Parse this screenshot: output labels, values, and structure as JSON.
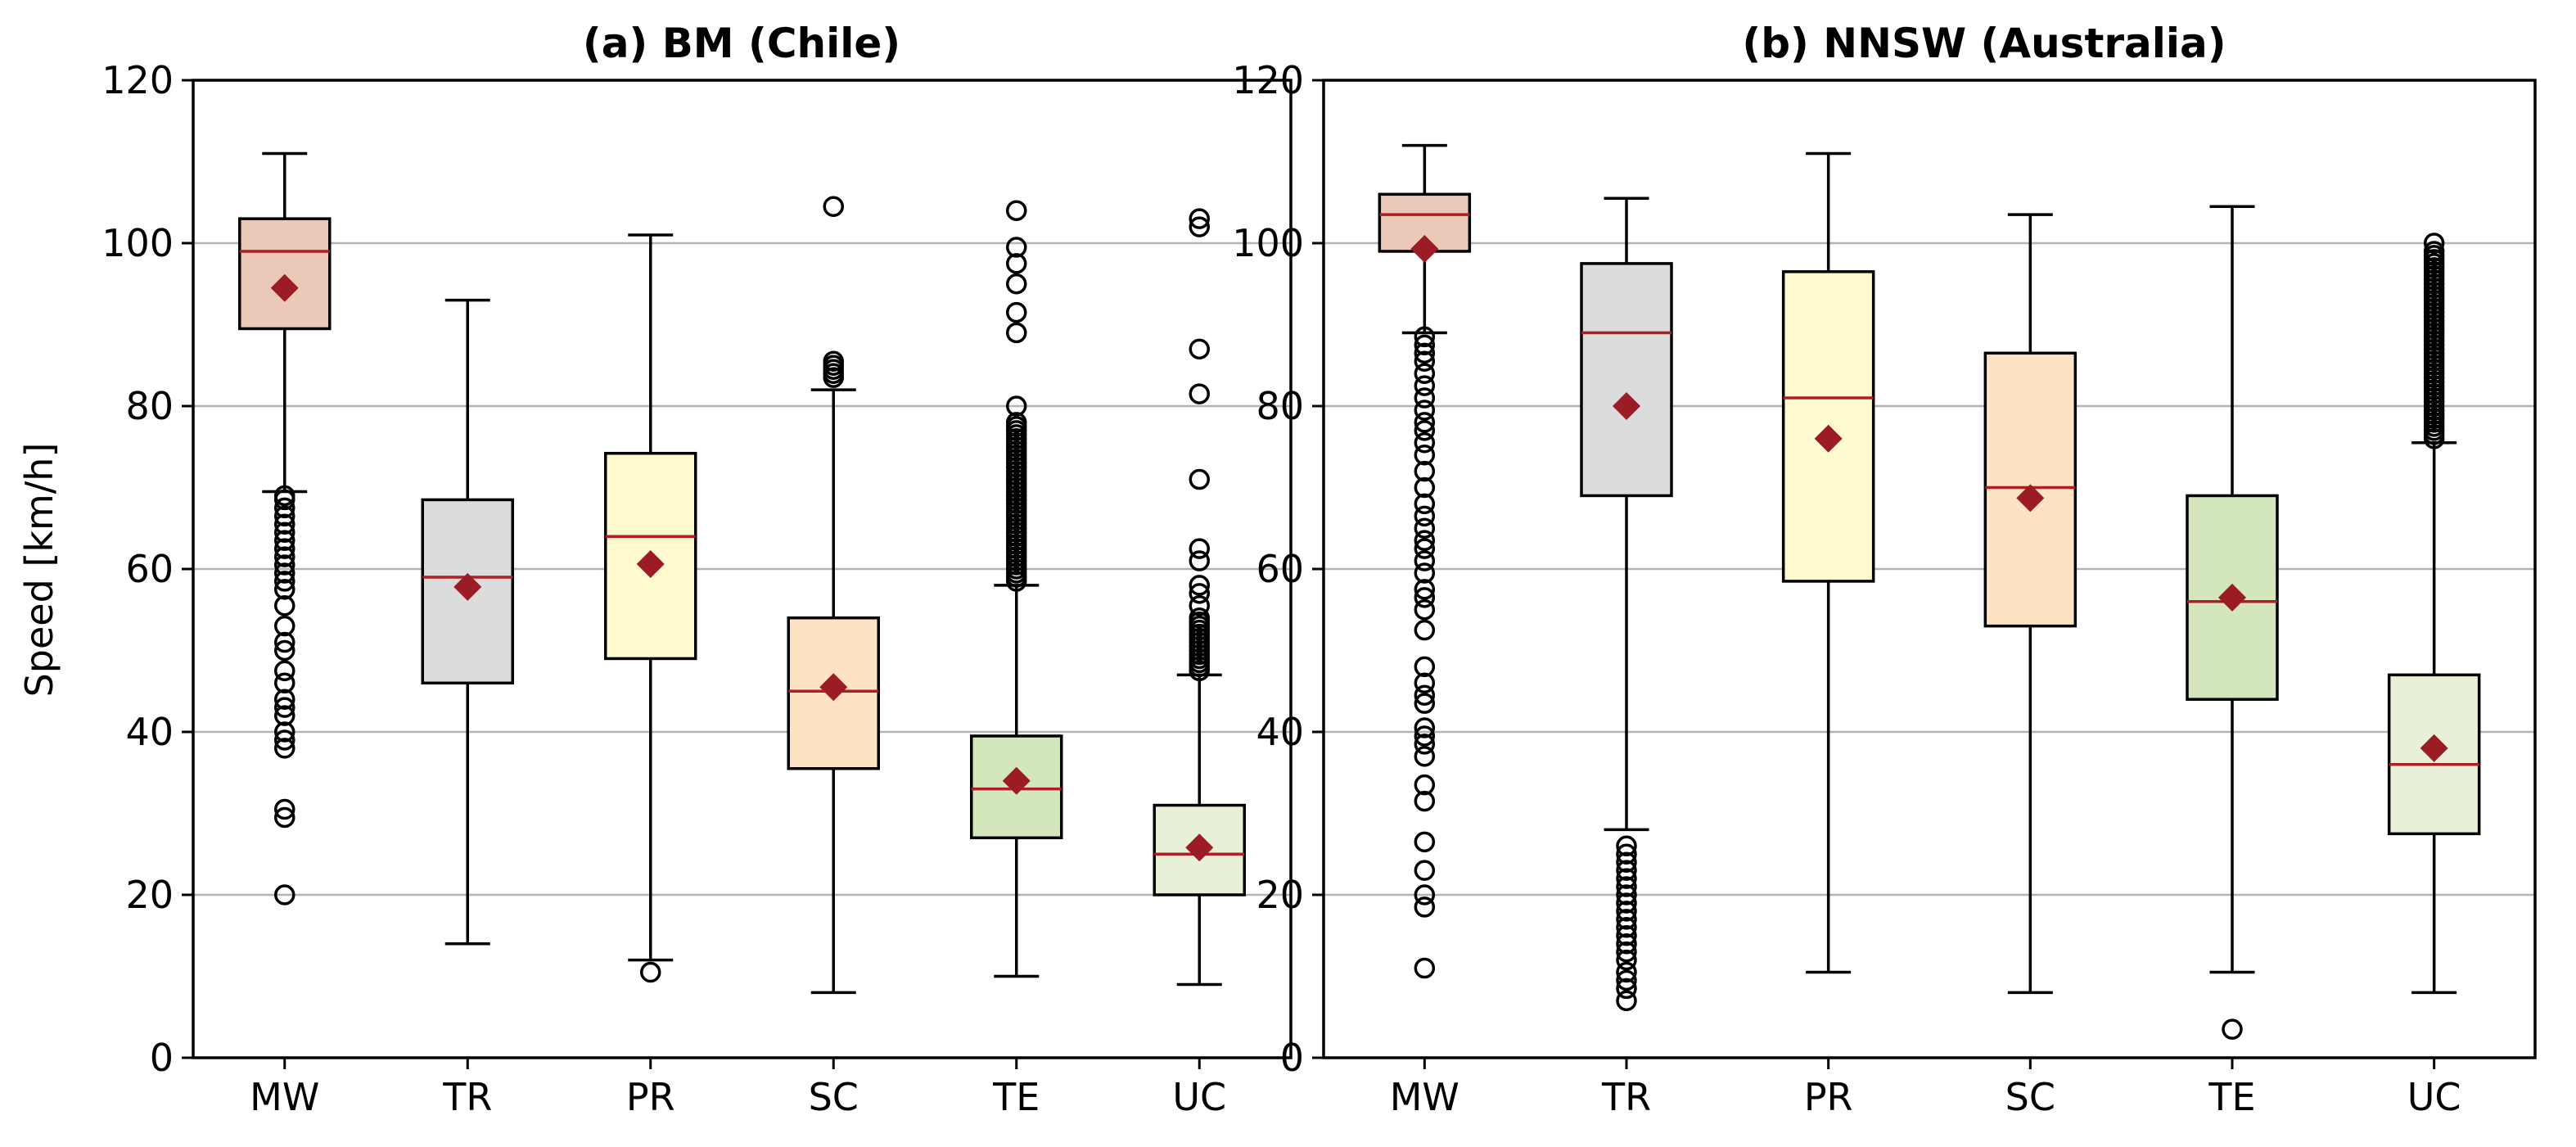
{
  "figure": {
    "ylabel": "Speed [km/h]"
  },
  "style": {
    "median_color": "#b01e23",
    "mean_color": "#9b1c24",
    "grid_color": "#b3b3b3",
    "box_colors": {
      "MW": "#ecc8b8",
      "TR": "#dcdcdc",
      "PR": "#fff9d0",
      "SC": "#fde3c3",
      "TE": "#d4e6bc",
      "UC": "#e8f0d8"
    },
    "icons": {
      "mean": "diamond-marker",
      "outlier": "circle-marker"
    }
  },
  "chart_data": [
    {
      "type": "box",
      "title": "(a) BM (Chile)",
      "xlabel": "",
      "ylabel": "Speed [km/h]",
      "ylim": [
        0,
        120
      ],
      "yticks": [
        0,
        20,
        40,
        60,
        80,
        100,
        120
      ],
      "grid": "y-major",
      "categories": [
        "MW",
        "TR",
        "PR",
        "SC",
        "TE",
        "UC"
      ],
      "boxes": [
        {
          "category": "MW",
          "whisker_low": 69.5,
          "q1": 89.5,
          "median": 99,
          "q3": 103,
          "whisker_high": 111,
          "mean": 94.5,
          "outliers": [
            20,
            29.5,
            30.5,
            38,
            39,
            40,
            42,
            43,
            44,
            46,
            47.5,
            50,
            51,
            53,
            55.5,
            57.5,
            58.5,
            59.5,
            60.5,
            61.5,
            62.5,
            63.5,
            64.5,
            65.5,
            66.5,
            67.5,
            68.5,
            69
          ]
        },
        {
          "category": "TR",
          "whisker_low": 14,
          "q1": 46,
          "median": 59,
          "q3": 68.5,
          "whisker_high": 93,
          "mean": 57.8,
          "outliers": []
        },
        {
          "category": "PR",
          "whisker_low": 12,
          "q1": 49,
          "median": 64,
          "q3": 74.2,
          "whisker_high": 101,
          "mean": 60.6,
          "outliers": [
            10.5
          ]
        },
        {
          "category": "SC",
          "whisker_low": 8,
          "q1": 35.5,
          "median": 45,
          "q3": 54,
          "whisker_high": 82,
          "mean": 45.5,
          "outliers": [
            83.5,
            84,
            84.5,
            85,
            85.5,
            104.5
          ]
        },
        {
          "category": "TE",
          "whisker_low": 10,
          "q1": 27,
          "median": 33,
          "q3": 39.5,
          "whisker_high": 58,
          "mean": 34,
          "outliers": [
            58.5,
            59,
            59.5,
            60,
            60.5,
            61,
            61.5,
            62,
            62.5,
            63,
            63.5,
            64,
            64.5,
            65,
            65.5,
            66,
            66.5,
            67,
            67.5,
            68,
            68.5,
            69,
            69.5,
            70,
            70.5,
            71,
            71.5,
            72,
            72.5,
            73,
            73.5,
            74,
            74.5,
            75,
            75.5,
            76,
            76.5,
            77,
            77.5,
            78,
            80,
            89,
            91.5,
            95,
            97.5,
            99.5,
            104
          ]
        },
        {
          "category": "UC",
          "whisker_low": 9,
          "q1": 20,
          "median": 25,
          "q3": 31,
          "whisker_high": 47,
          "mean": 25.8,
          "outliers": [
            47.5,
            48,
            48.5,
            49,
            49.5,
            50,
            50.5,
            51,
            51.5,
            52,
            52.5,
            53,
            53.5,
            54,
            55.5,
            57,
            58,
            61,
            62.5,
            71,
            81.5,
            87,
            102,
            103
          ]
        }
      ]
    },
    {
      "type": "box",
      "title": "(b) NNSW (Australia)",
      "xlabel": "",
      "ylabel": "",
      "ylim": [
        0,
        120
      ],
      "yticks": [
        0,
        20,
        40,
        60,
        80,
        100,
        120
      ],
      "grid": "y-major",
      "categories": [
        "MW",
        "TR",
        "PR",
        "SC",
        "TE",
        "UC"
      ],
      "boxes": [
        {
          "category": "MW",
          "whisker_low": 89,
          "q1": 99,
          "median": 103.5,
          "q3": 106,
          "whisker_high": 112,
          "mean": 99.3,
          "outliers": [
            11,
            18.5,
            20,
            23,
            26.5,
            31.5,
            33.5,
            37,
            38.5,
            39.5,
            40.5,
            43.5,
            44.5,
            46,
            48,
            52.5,
            55,
            56.5,
            57.5,
            59.5,
            61,
            62.5,
            63.5,
            65,
            66.5,
            68,
            70,
            72,
            74,
            75.5,
            77,
            78,
            79.5,
            81,
            82.5,
            84,
            85.5,
            86.5,
            87.5,
            88.5
          ]
        },
        {
          "category": "TR",
          "whisker_low": 28,
          "q1": 69,
          "median": 89,
          "q3": 97.5,
          "whisker_high": 105.5,
          "mean": 80,
          "outliers": [
            7,
            8.5,
            9.5,
            10.5,
            12,
            13,
            14,
            15,
            16,
            17,
            18,
            19,
            20,
            21,
            22,
            23,
            24,
            25,
            26
          ]
        },
        {
          "category": "PR",
          "whisker_low": 10.5,
          "q1": 58.5,
          "median": 81,
          "q3": 96.5,
          "whisker_high": 111,
          "mean": 76,
          "outliers": []
        },
        {
          "category": "SC",
          "whisker_low": 8,
          "q1": 53,
          "median": 70,
          "q3": 86.5,
          "whisker_high": 103.5,
          "mean": 68.7,
          "outliers": []
        },
        {
          "category": "TE",
          "whisker_low": 10.5,
          "q1": 44,
          "median": 56,
          "q3": 69,
          "whisker_high": 104.5,
          "mean": 56.5,
          "outliers": [
            3.5
          ]
        },
        {
          "category": "UC",
          "whisker_low": 8,
          "q1": 27.5,
          "median": 36,
          "q3": 47,
          "whisker_high": 75.5,
          "mean": 38,
          "outliers": [
            76,
            76.5,
            77,
            77.5,
            78,
            78.5,
            79,
            79.5,
            80,
            80.5,
            81,
            81.5,
            82,
            82.5,
            83,
            83.5,
            84,
            84.5,
            85,
            85.5,
            86,
            86.5,
            87,
            87.5,
            88,
            88.5,
            89,
            89.5,
            90,
            90.5,
            91,
            91.5,
            92,
            92.5,
            93,
            93.5,
            94,
            94.5,
            95,
            95.5,
            96,
            96.5,
            97,
            97.5,
            98,
            98.5,
            99,
            100
          ]
        }
      ]
    }
  ]
}
